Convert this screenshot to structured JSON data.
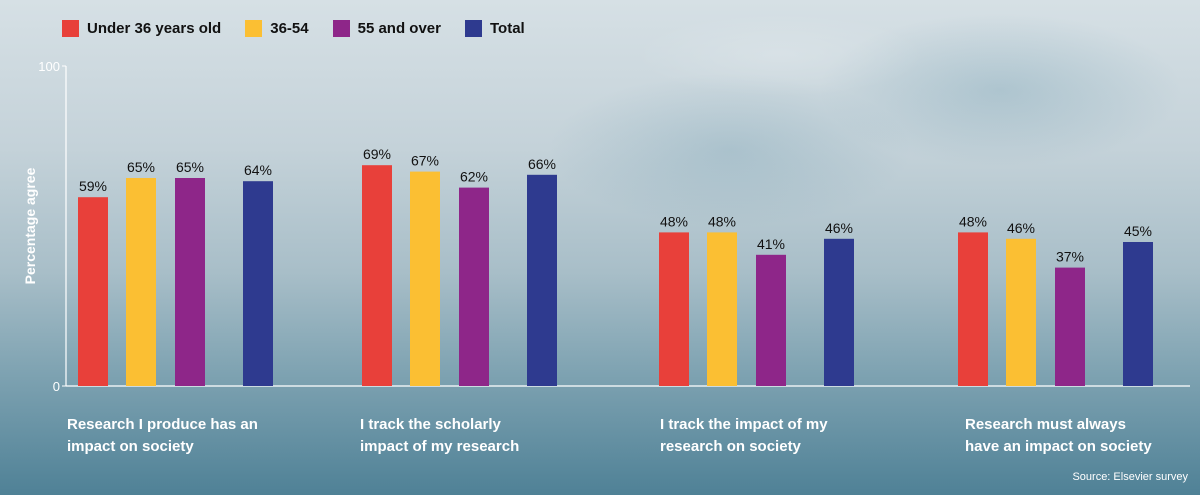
{
  "chart_data": {
    "type": "bar",
    "ylabel": "Percentage agree",
    "xlabel": "",
    "ylim": [
      0,
      100
    ],
    "yticks": [
      "0",
      "100"
    ],
    "categories": [
      [
        "Research I produce has an",
        "impact on society"
      ],
      [
        "I track the scholarly",
        "impact of my research"
      ],
      [
        "I track the impact of my",
        "research on society"
      ],
      [
        "Research must always",
        "have an impact on society"
      ]
    ],
    "series": [
      {
        "name": "Under 36 years old",
        "color": "#e8403a",
        "values": [
          59,
          69,
          48,
          48
        ],
        "labels": [
          "59%",
          "69%",
          "48%",
          "48%"
        ]
      },
      {
        "name": "36-54",
        "color": "#fbbf33",
        "values": [
          65,
          67,
          48,
          46
        ],
        "labels": [
          "65%",
          "67%",
          "48%",
          "46%"
        ]
      },
      {
        "name": "55 and over",
        "color": "#8e2689",
        "values": [
          65,
          62,
          41,
          37
        ],
        "labels": [
          "65%",
          "62%",
          "41%",
          "37%"
        ]
      },
      {
        "name": "Total",
        "color": "#2e3a8f",
        "values": [
          64,
          66,
          46,
          45
        ],
        "labels": [
          "64%",
          "66%",
          "46%",
          "45%"
        ]
      }
    ]
  },
  "source": "Source: Elsevier survey"
}
